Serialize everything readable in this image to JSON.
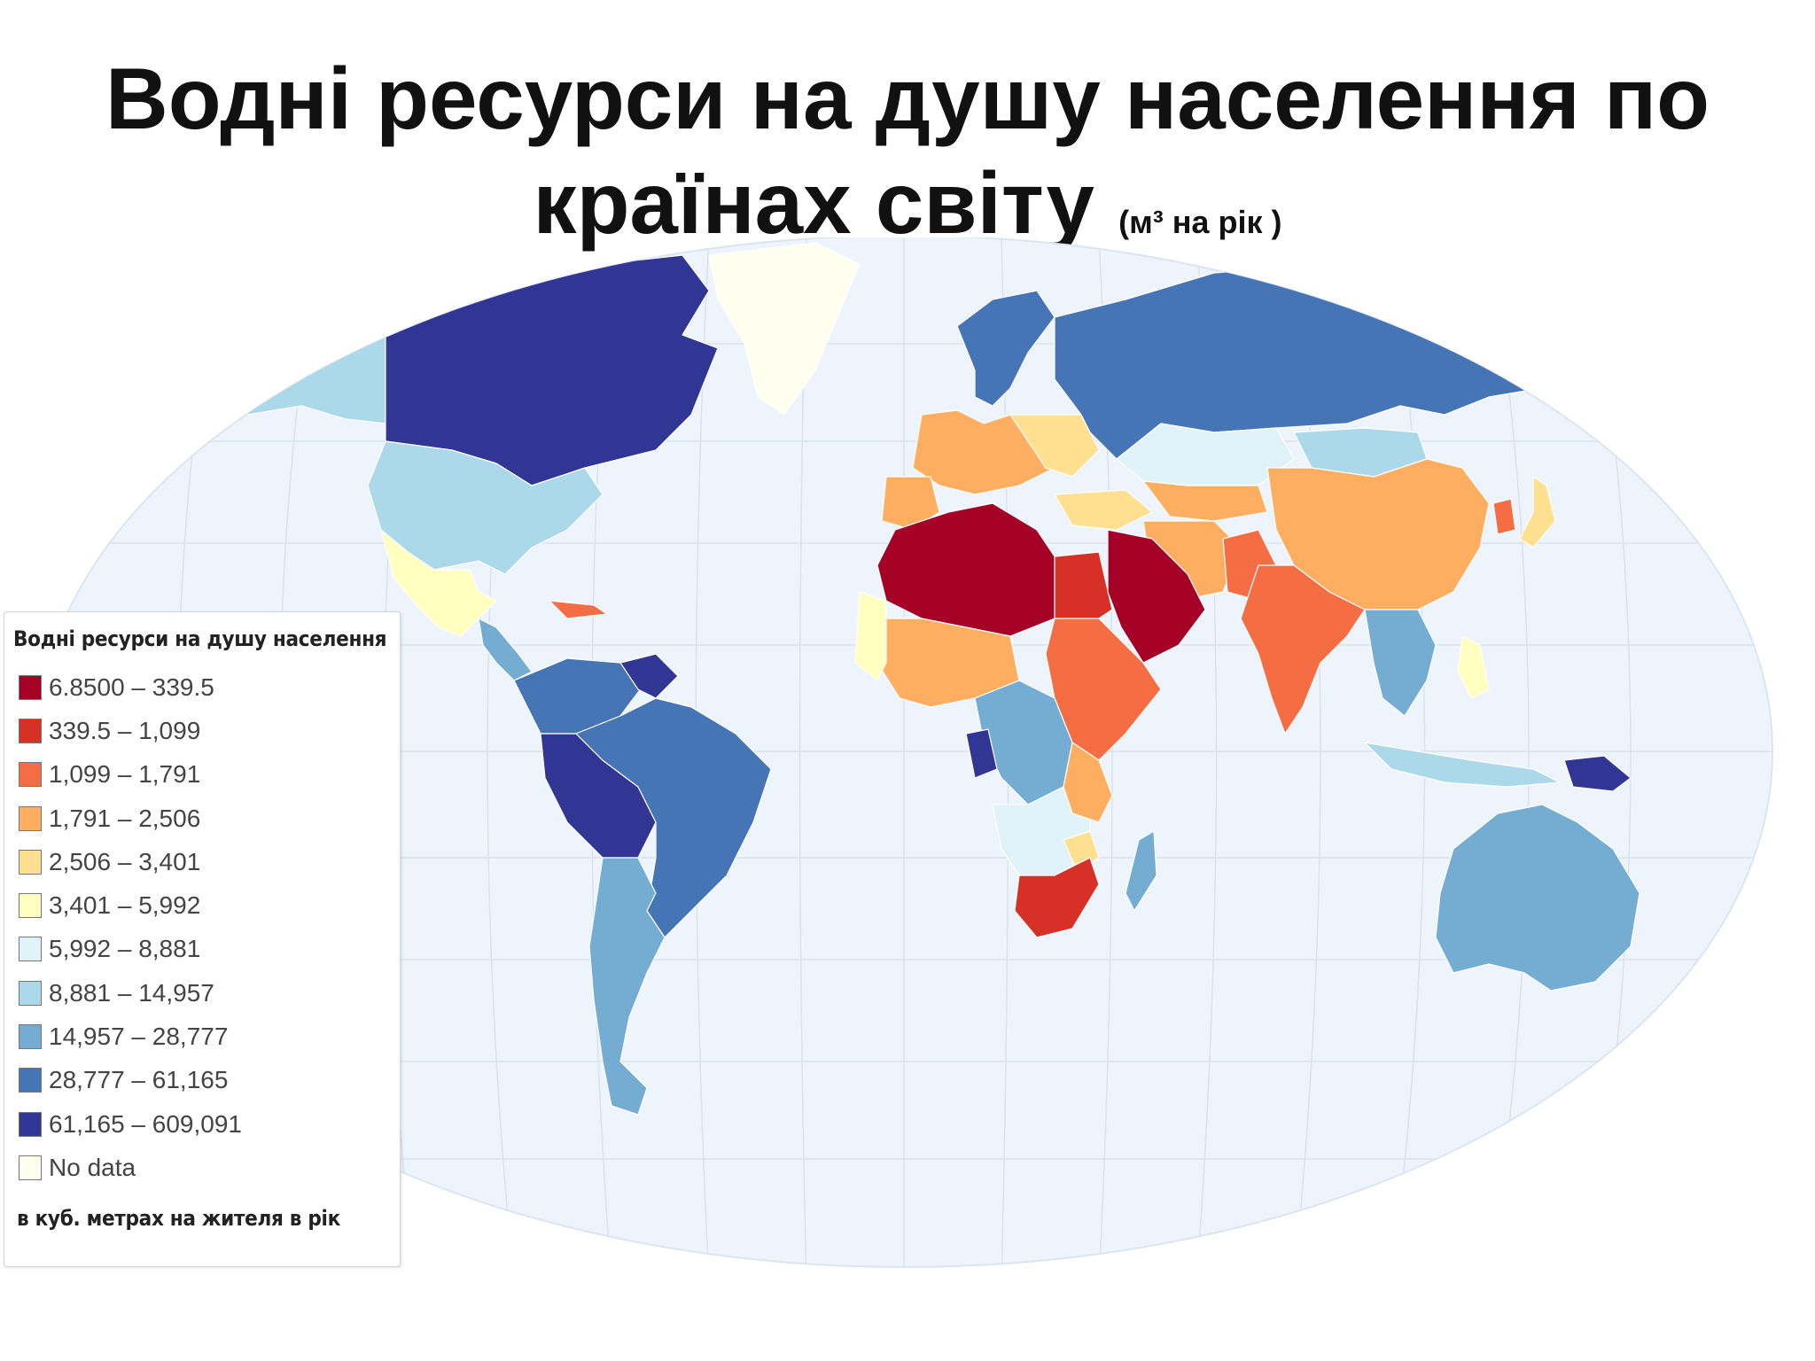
{
  "title": {
    "main_line1": "Водні ресурси на душу населення по",
    "main_line2": "країнах світу",
    "unit": "(м³ на рік )"
  },
  "legend": {
    "title": "Водні ресурси на душу населення",
    "items": [
      {
        "label": "6.8500 – 339.5",
        "color": "#a50026"
      },
      {
        "label": "339.5 – 1,099",
        "color": "#d73027"
      },
      {
        "label": "1,099 – 1,791",
        "color": "#f46d43"
      },
      {
        "label": "1,791 – 2,506",
        "color": "#fdae61"
      },
      {
        "label": "2,506 – 3,401",
        "color": "#fee090"
      },
      {
        "label": "3,401 – 5,992",
        "color": "#ffffbf"
      },
      {
        "label": "5,992 – 8,881",
        "color": "#e0f3f8"
      },
      {
        "label": "8,881 – 14,957",
        "color": "#abd9e9"
      },
      {
        "label": "14,957 – 28,777",
        "color": "#74add1"
      },
      {
        "label": "28,777 – 61,165",
        "color": "#4575b4"
      },
      {
        "label": "61,165 – 609,091",
        "color": "#313695"
      },
      {
        "label": "No data",
        "color": "#fffff0"
      }
    ],
    "note": "в куб. метрах на жителя в рік"
  },
  "map_colors": {
    "ocean": "#eef4fb",
    "graticule": "#d9e3ee"
  }
}
